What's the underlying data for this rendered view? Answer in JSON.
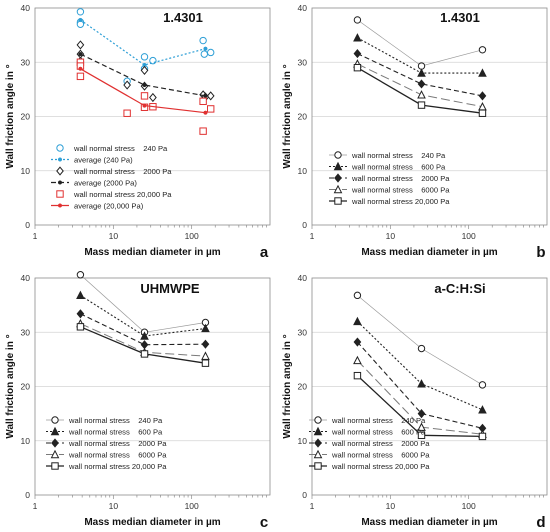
{
  "chart_data": [
    {
      "type": "scatter",
      "panel_letter": "a",
      "title": "1.4301",
      "xlabel": "Mass median diameter in µm",
      "ylabel": "Wall friction angle in °",
      "x_scale": "log",
      "xlim": [
        1,
        1000
      ],
      "ylim": [
        0,
        40
      ],
      "x_ticks": [
        "1",
        "10",
        "100"
      ],
      "y_ticks": [
        "0",
        "10",
        "20",
        "30",
        "40"
      ],
      "grid": "horizontal",
      "legend_position": "bottom-left",
      "series": [
        {
          "name": "wall normal stress    240 Pa",
          "mode": "markers",
          "marker": "circle-open",
          "color": "#2E9FD6",
          "x": [
            3.8,
            3.8,
            3.8,
            15,
            25,
            25,
            32,
            140,
            145,
            175
          ],
          "y": [
            39.3,
            37.4,
            37.0,
            26.5,
            31.0,
            28.8,
            30.3,
            34.0,
            31.5,
            31.8
          ]
        },
        {
          "name": "average (240 Pa)",
          "mode": "lines+markers",
          "marker": "dot",
          "dash": "2,2",
          "color": "#2E9FD6",
          "x": [
            3.8,
            25,
            150
          ],
          "y": [
            37.8,
            29.5,
            32.5
          ]
        },
        {
          "name": "wall normal stress    2000 Pa",
          "mode": "markers",
          "marker": "diamond-open",
          "color": "#222222",
          "x": [
            3.8,
            3.8,
            3.8,
            15,
            25,
            25,
            32,
            140,
            150,
            175
          ],
          "y": [
            33.2,
            31.5,
            30.2,
            25.8,
            28.5,
            25.6,
            23.5,
            24.0,
            23.6,
            23.8
          ]
        },
        {
          "name": "average (2000 Pa)",
          "mode": "lines+markers",
          "marker": "dot",
          "dash": "5,3",
          "color": "#222222",
          "x": [
            3.8,
            25,
            150
          ],
          "y": [
            31.5,
            25.8,
            23.8
          ]
        },
        {
          "name": "wall normal stress 20,000 Pa",
          "mode": "markers",
          "marker": "square-open",
          "color": "#E03030",
          "x": [
            3.8,
            3.8,
            3.8,
            15,
            25,
            25,
            32,
            140,
            140,
            175
          ],
          "y": [
            30.0,
            29.3,
            27.4,
            20.6,
            23.8,
            21.7,
            21.8,
            22.8,
            17.3,
            21.4
          ]
        },
        {
          "name": "average (20,000 Pa)",
          "mode": "lines+markers",
          "marker": "dot",
          "dash": "none",
          "color": "#E03030",
          "x": [
            3.8,
            25,
            150
          ],
          "y": [
            28.8,
            22.0,
            20.7
          ]
        }
      ]
    },
    {
      "type": "line",
      "panel_letter": "b",
      "title": "1.4301",
      "xlabel": "Mass median diameter in µm",
      "ylabel": "Wall friction angle in °",
      "x_scale": "log",
      "xlim": [
        1,
        1000
      ],
      "ylim": [
        0,
        40
      ],
      "x_ticks": [
        "1",
        "10",
        "100"
      ],
      "y_ticks": [
        "0",
        "10",
        "20",
        "30",
        "40"
      ],
      "grid": "horizontal",
      "legend_position": "bottom-left",
      "series": [
        {
          "name": "wall normal stress    240 Pa",
          "marker": "circle-open",
          "line": "thin",
          "x": [
            3.8,
            25,
            150
          ],
          "y": [
            37.8,
            29.3,
            32.3
          ]
        },
        {
          "name": "wall normal stress    600 Pa",
          "marker": "triangle",
          "line": "dot",
          "x": [
            3.8,
            25,
            150
          ],
          "y": [
            34.5,
            28.0,
            28.0
          ]
        },
        {
          "name": "wall normal stress    2000 Pa",
          "marker": "diamond",
          "line": "dash",
          "x": [
            3.8,
            25,
            150
          ],
          "y": [
            31.6,
            26.0,
            23.8
          ]
        },
        {
          "name": "wall normal stress    6000 Pa",
          "marker": "triangle-open",
          "line": "longdash",
          "x": [
            3.8,
            25,
            150
          ],
          "y": [
            29.7,
            24.0,
            21.8
          ]
        },
        {
          "name": "wall normal stress 20,000 Pa",
          "marker": "square-open",
          "line": "solid",
          "x": [
            3.8,
            25,
            150
          ],
          "y": [
            29.0,
            22.1,
            20.6
          ]
        }
      ]
    },
    {
      "type": "line",
      "panel_letter": "c",
      "title": "UHMWPE",
      "xlabel": "Mass median diameter in µm",
      "ylabel": "Wall friction angle in °",
      "x_scale": "log",
      "xlim": [
        1,
        1000
      ],
      "ylim": [
        0,
        40
      ],
      "x_ticks": [
        "1",
        "10",
        "100"
      ],
      "y_ticks": [
        "0",
        "10",
        "20",
        "30",
        "40"
      ],
      "grid": "horizontal",
      "legend_position": "bottom-left",
      "series": [
        {
          "name": "wall normal stress    240 Pa",
          "marker": "circle-open",
          "line": "thin",
          "x": [
            3.8,
            25,
            150
          ],
          "y": [
            40.6,
            30.0,
            31.8
          ]
        },
        {
          "name": "wall normal stress    600 Pa",
          "marker": "triangle",
          "line": "dot",
          "x": [
            3.8,
            25,
            150
          ],
          "y": [
            36.8,
            29.3,
            30.7
          ]
        },
        {
          "name": "wall normal stress    2000 Pa",
          "marker": "diamond",
          "line": "dash",
          "x": [
            3.8,
            25,
            150
          ],
          "y": [
            33.4,
            27.7,
            27.8
          ]
        },
        {
          "name": "wall normal stress    6000 Pa",
          "marker": "triangle-open",
          "line": "longdash",
          "x": [
            3.8,
            25,
            150
          ],
          "y": [
            31.6,
            26.3,
            25.6
          ]
        },
        {
          "name": "wall normal stress 20,000 Pa",
          "marker": "square-open",
          "line": "solid",
          "x": [
            3.8,
            25,
            150
          ],
          "y": [
            31.0,
            26.0,
            24.3
          ]
        }
      ]
    },
    {
      "type": "line",
      "panel_letter": "d",
      "title": "a-C:H:Si",
      "xlabel": "Mass median diameter in µm",
      "ylabel": "Wall friction angle in °",
      "x_scale": "log",
      "xlim": [
        1,
        1000
      ],
      "ylim": [
        0,
        40
      ],
      "x_ticks": [
        "1",
        "10",
        "100"
      ],
      "y_ticks": [
        "0",
        "10",
        "20",
        "30",
        "40"
      ],
      "grid": "horizontal",
      "legend_position": "bottom-left",
      "series": [
        {
          "name": "wall normal stress    240 Pa",
          "marker": "circle-open",
          "line": "thin",
          "x": [
            3.8,
            25,
            150
          ],
          "y": [
            36.8,
            27.0,
            20.3
          ]
        },
        {
          "name": "wall normal stress    600 Pa",
          "marker": "triangle",
          "line": "dot",
          "x": [
            3.8,
            25,
            150
          ],
          "y": [
            32.0,
            20.5,
            15.7
          ]
        },
        {
          "name": "wall normal stress    2000 Pa",
          "marker": "diamond",
          "line": "dash",
          "x": [
            3.8,
            25,
            150
          ],
          "y": [
            28.2,
            15.0,
            12.3
          ]
        },
        {
          "name": "wall normal stress    6000 Pa",
          "marker": "triangle-open",
          "line": "longdash",
          "x": [
            3.8,
            25,
            150
          ],
          "y": [
            24.8,
            12.5,
            11.2
          ]
        },
        {
          "name": "wall normal stress 20,000 Pa",
          "marker": "square-open",
          "line": "solid",
          "x": [
            3.8,
            25,
            150
          ],
          "y": [
            22.0,
            11.0,
            10.8
          ]
        }
      ]
    }
  ]
}
